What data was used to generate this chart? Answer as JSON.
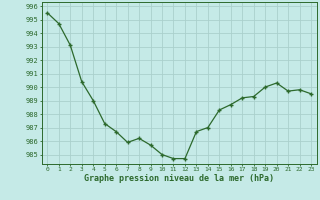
{
  "x": [
    0,
    1,
    2,
    3,
    4,
    5,
    6,
    7,
    8,
    9,
    10,
    11,
    12,
    13,
    14,
    15,
    16,
    17,
    18,
    19,
    20,
    21,
    22,
    23
  ],
  "y": [
    995.5,
    994.7,
    993.1,
    990.4,
    989.0,
    987.3,
    986.7,
    985.9,
    986.2,
    985.7,
    985.0,
    984.7,
    984.7,
    986.7,
    987.0,
    988.3,
    988.7,
    989.2,
    989.3,
    990.0,
    990.3,
    989.7,
    989.8,
    989.5
  ],
  "line_color": "#2d6a2d",
  "marker": "+",
  "marker_size": 3,
  "bg_color": "#c5eae7",
  "grid_color": "#aad0cc",
  "ylim": [
    984.3,
    996.3
  ],
  "yticks": [
    985,
    986,
    987,
    988,
    989,
    990,
    991,
    992,
    993,
    994,
    995,
    996
  ],
  "xlabel": "Graphe pression niveau de la mer (hPa)",
  "axis_color": "#2d6a2d",
  "tick_color": "#2d6a2d",
  "label_color": "#2d6a2d"
}
